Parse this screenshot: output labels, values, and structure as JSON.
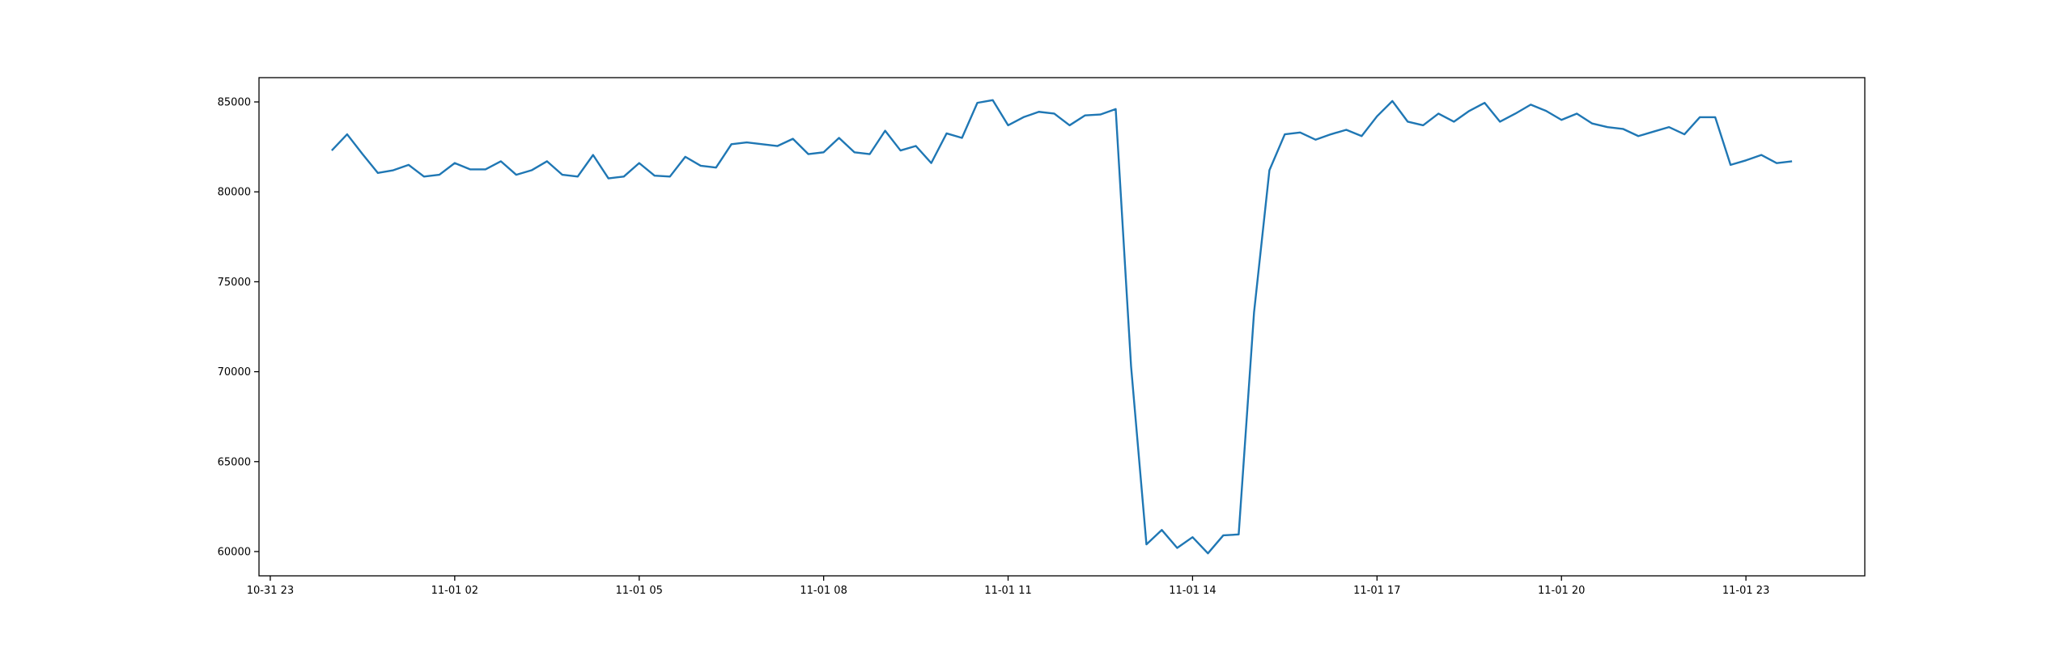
{
  "chart_data": {
    "type": "line",
    "x": [
      "11-01 00:00",
      "11-01 00:15",
      "11-01 00:30",
      "11-01 00:45",
      "11-01 01:00",
      "11-01 01:15",
      "11-01 01:30",
      "11-01 01:45",
      "11-01 02:00",
      "11-01 02:15",
      "11-01 02:30",
      "11-01 02:45",
      "11-01 03:00",
      "11-01 03:15",
      "11-01 03:30",
      "11-01 03:45",
      "11-01 04:00",
      "11-01 04:15",
      "11-01 04:30",
      "11-01 04:45",
      "11-01 05:00",
      "11-01 05:15",
      "11-01 05:30",
      "11-01 05:45",
      "11-01 06:00",
      "11-01 06:15",
      "11-01 06:30",
      "11-01 06:45",
      "11-01 07:00",
      "11-01 07:15",
      "11-01 07:30",
      "11-01 07:45",
      "11-01 08:00",
      "11-01 08:15",
      "11-01 08:30",
      "11-01 08:45",
      "11-01 09:00",
      "11-01 09:15",
      "11-01 09:30",
      "11-01 09:45",
      "11-01 10:00",
      "11-01 10:15",
      "11-01 10:30",
      "11-01 10:45",
      "11-01 11:00",
      "11-01 11:15",
      "11-01 11:30",
      "11-01 11:45",
      "11-01 12:00",
      "11-01 12:15",
      "11-01 12:30",
      "11-01 12:45",
      "11-01 13:00",
      "11-01 13:15",
      "11-01 13:30",
      "11-01 13:45",
      "11-01 14:00",
      "11-01 14:15",
      "11-01 14:30",
      "11-01 14:45",
      "11-01 15:00",
      "11-01 15:15",
      "11-01 15:30",
      "11-01 15:45",
      "11-01 16:00",
      "11-01 16:15",
      "11-01 16:30",
      "11-01 16:45",
      "11-01 17:00",
      "11-01 17:15",
      "11-01 17:30",
      "11-01 17:45",
      "11-01 18:00",
      "11-01 18:15",
      "11-01 18:30",
      "11-01 18:45",
      "11-01 19:00",
      "11-01 19:15",
      "11-01 19:30",
      "11-01 19:45",
      "11-01 20:00",
      "11-01 20:15",
      "11-01 20:30",
      "11-01 20:45",
      "11-01 21:00",
      "11-01 21:15",
      "11-01 21:30",
      "11-01 21:45",
      "11-01 22:00",
      "11-01 22:15",
      "11-01 22:30",
      "11-01 22:45",
      "11-01 23:00",
      "11-01 23:15",
      "11-01 23:30",
      "11-01 23:45"
    ],
    "values": [
      82300,
      83200,
      82100,
      81050,
      81200,
      81500,
      80850,
      80950,
      81600,
      81250,
      81250,
      81700,
      80950,
      81200,
      81700,
      80950,
      80850,
      82050,
      80750,
      80850,
      81600,
      80900,
      80850,
      81950,
      81450,
      81350,
      82650,
      82750,
      82650,
      82550,
      82950,
      82100,
      82200,
      83000,
      82200,
      82100,
      83400,
      82300,
      82550,
      81600,
      83250,
      83000,
      84950,
      85100,
      83700,
      84150,
      84450,
      84350,
      83700,
      84250,
      84300,
      84600,
      70300,
      60400,
      61200,
      60200,
      60800,
      59900,
      60900,
      60950,
      73300,
      81200,
      83200,
      83300,
      82900,
      83200,
      83450,
      83100,
      84200,
      85050,
      83900,
      83700,
      84350,
      83900,
      84500,
      84950,
      83900,
      84350,
      84850,
      84500,
      84000,
      84350,
      83800,
      83600,
      83500,
      83100,
      83350,
      83600,
      83200,
      84150,
      84150,
      81500,
      81750,
      82050,
      81600,
      81700
    ],
    "color": "#1f77b4",
    "xlim": [
      "10-31 22:49",
      "11-02 00:56"
    ],
    "xticks": [
      {
        "value": "10-31 23:00",
        "label": "10-31 23"
      },
      {
        "value": "11-01 02:00",
        "label": "11-01 02"
      },
      {
        "value": "11-01 05:00",
        "label": "11-01 05"
      },
      {
        "value": "11-01 08:00",
        "label": "11-01 08"
      },
      {
        "value": "11-01 11:00",
        "label": "11-01 11"
      },
      {
        "value": "11-01 14:00",
        "label": "11-01 14"
      },
      {
        "value": "11-01 17:00",
        "label": "11-01 17"
      },
      {
        "value": "11-01 20:00",
        "label": "11-01 20"
      },
      {
        "value": "11-01 23:00",
        "label": "11-01 23"
      }
    ],
    "ylim": [
      58650,
      86350
    ],
    "yticks": [
      60000,
      65000,
      70000,
      75000,
      80000,
      85000
    ],
    "grid": false
  }
}
